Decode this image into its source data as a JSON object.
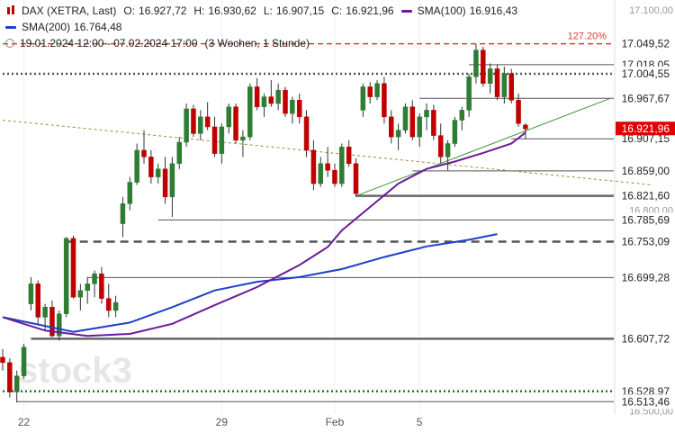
{
  "legend": {
    "instrument": "DAX (XETRA, Last)",
    "open_label": "O:",
    "open": "16.927,72",
    "high_label": "H:",
    "high": "16.930,62",
    "low_label": "L:",
    "low": "16.907,15",
    "close_label": "C:",
    "close": "16.921,96",
    "sma100_label": "SMA(100)",
    "sma100": "16.916,43",
    "sma200_label": "SMA(200)",
    "sma200": "16.764,48",
    "period": "19.01.2024 12:00 - 07.02.2024 17:00",
    "range": "(3 Wochen, 1 Stunde)",
    "icons": {
      "candle": "candlestick-icon",
      "sma": "line-swatch-icon",
      "period": "clock-icon"
    }
  },
  "colors": {
    "up": "#2e7d32",
    "down": "#c00000",
    "wick": "#333333",
    "sma100": "#6a1b9a",
    "sma200": "#1f3fc8",
    "trendline": "#3a9a3a",
    "dotted_trend": "#9a8a3a",
    "fib": "#e53935",
    "level": "#555555",
    "last_price_bg": "#e00000"
  },
  "chart_data": {
    "type": "candlestick",
    "title": "DAX (XETRA, Last)",
    "watermark": "stock3",
    "ylim": [
      16495,
      17115
    ],
    "x_ticks": [
      {
        "label": "22",
        "bar": 3
      },
      {
        "label": "29",
        "bar": 31
      },
      {
        "label": "Feb",
        "bar": 47
      },
      {
        "label": "5",
        "bar": 59
      }
    ],
    "y_axis_ticks": [
      "17.100,00",
      "17.018,05",
      "16.800,00",
      "16.500,00"
    ],
    "candles": [
      [
        16580,
        16592,
        16560,
        16572
      ],
      [
        16572,
        16578,
        16520,
        16528
      ],
      [
        16528,
        16560,
        16512,
        16552
      ],
      [
        16552,
        16600,
        16548,
        16595
      ],
      [
        16660,
        16700,
        16650,
        16690
      ],
      [
        16690,
        16695,
        16630,
        16640
      ],
      [
        16640,
        16660,
        16620,
        16655
      ],
      [
        16655,
        16665,
        16610,
        16612
      ],
      [
        16612,
        16650,
        16605,
        16645
      ],
      [
        16645,
        16760,
        16640,
        16758
      ],
      [
        16758,
        16762,
        16668,
        16670
      ],
      [
        16670,
        16690,
        16650,
        16680
      ],
      [
        16680,
        16700,
        16660,
        16690
      ],
      [
        16690,
        16710,
        16670,
        16705
      ],
      [
        16705,
        16715,
        16660,
        16668
      ],
      [
        16668,
        16690,
        16640,
        16650
      ],
      [
        16650,
        16672,
        16640,
        16662
      ],
      [
        16780,
        16820,
        16760,
        16810
      ],
      [
        16810,
        16850,
        16800,
        16842
      ],
      [
        16842,
        16900,
        16838,
        16890
      ],
      [
        16890,
        16920,
        16870,
        16880
      ],
      [
        16880,
        16890,
        16840,
        16850
      ],
      [
        16850,
        16870,
        16840,
        16862
      ],
      [
        16862,
        16880,
        16810,
        16820
      ],
      [
        16820,
        16880,
        16790,
        16870
      ],
      [
        16870,
        16910,
        16862,
        16902
      ],
      [
        16902,
        16960,
        16895,
        16952
      ],
      [
        16952,
        16958,
        16910,
        16915
      ],
      [
        16915,
        16950,
        16905,
        16940
      ],
      [
        16940,
        16962,
        16920,
        16925
      ],
      [
        16925,
        16940,
        16880,
        16885
      ],
      [
        16885,
        16930,
        16870,
        16925
      ],
      [
        16925,
        16960,
        16915,
        16955
      ],
      [
        16955,
        16960,
        16900,
        16905
      ],
      [
        16905,
        16920,
        16880,
        16910
      ],
      [
        16910,
        16990,
        16905,
        16985
      ],
      [
        16985,
        16998,
        16950,
        16955
      ],
      [
        16955,
        16975,
        16940,
        16970
      ],
      [
        16970,
        16995,
        16955,
        16960
      ],
      [
        16960,
        16990,
        16950,
        16980
      ],
      [
        16980,
        16985,
        16940,
        16945
      ],
      [
        16945,
        16970,
        16930,
        16965
      ],
      [
        16965,
        16975,
        16930,
        16940
      ],
      [
        16940,
        16950,
        16880,
        16890
      ],
      [
        16890,
        16905,
        16830,
        16840
      ],
      [
        16840,
        16880,
        16835,
        16870
      ],
      [
        16870,
        16895,
        16850,
        16860
      ],
      [
        16860,
        16870,
        16835,
        16840
      ],
      [
        16840,
        16900,
        16835,
        16895
      ],
      [
        16895,
        16905,
        16865,
        16870
      ],
      [
        16870,
        16878,
        16820,
        16825
      ],
      [
        16950,
        16990,
        16940,
        16985
      ],
      [
        16985,
        16992,
        16960,
        16970
      ],
      [
        16970,
        16995,
        16965,
        16990
      ],
      [
        16990,
        17000,
        16930,
        16940
      ],
      [
        16940,
        16950,
        16900,
        16910
      ],
      [
        16910,
        16930,
        16890,
        16920
      ],
      [
        16920,
        16960,
        16915,
        16955
      ],
      [
        16955,
        16965,
        16905,
        16910
      ],
      [
        16910,
        16945,
        16895,
        16940
      ],
      [
        16940,
        16960,
        16920,
        16950
      ],
      [
        16950,
        16958,
        16905,
        16912
      ],
      [
        16912,
        16930,
        16870,
        16880
      ],
      [
        16880,
        16905,
        16860,
        16900
      ],
      [
        16900,
        16940,
        16895,
        16935
      ],
      [
        16935,
        16955,
        16920,
        16950
      ],
      [
        16950,
        17005,
        16940,
        17000
      ],
      [
        17000,
        17049,
        16990,
        17040
      ],
      [
        17040,
        17045,
        16985,
        16990
      ],
      [
        16990,
        17020,
        16975,
        17012
      ],
      [
        17012,
        17018,
        16965,
        16970
      ],
      [
        16970,
        17015,
        16960,
        17005
      ],
      [
        17005,
        17012,
        16960,
        16965
      ],
      [
        16965,
        16975,
        16925,
        16930
      ],
      [
        16927.72,
        16930.62,
        16907.15,
        16921.96
      ]
    ],
    "sma100": [
      [
        0,
        16640
      ],
      [
        6,
        16620
      ],
      [
        12,
        16612
      ],
      [
        18,
        16615
      ],
      [
        24,
        16630
      ],
      [
        30,
        16658
      ],
      [
        36,
        16685
      ],
      [
        42,
        16718
      ],
      [
        46,
        16745
      ],
      [
        48,
        16770
      ],
      [
        52,
        16805
      ],
      [
        56,
        16840
      ],
      [
        60,
        16862
      ],
      [
        64,
        16873
      ],
      [
        68,
        16886
      ],
      [
        72,
        16900
      ],
      [
        74,
        16916.43
      ]
    ],
    "sma200": [
      [
        0,
        16640
      ],
      [
        10,
        16618
      ],
      [
        18,
        16632
      ],
      [
        24,
        16655
      ],
      [
        30,
        16680
      ],
      [
        36,
        16693
      ],
      [
        42,
        16700
      ],
      [
        48,
        16712
      ],
      [
        54,
        16730
      ],
      [
        60,
        16746
      ],
      [
        66,
        16756
      ],
      [
        70,
        16764.48
      ]
    ],
    "horizontal_levels": [
      {
        "value": 17049.52,
        "label": "17.049,52",
        "style": "fib-dashed",
        "start_bar": 0,
        "note": "127.20%"
      },
      {
        "value": 17018.05,
        "label": "17.018,05",
        "style": "thin",
        "start_bar": 66
      },
      {
        "value": 17004.55,
        "label": "17.004,55",
        "style": "dotted-thick",
        "start_bar": 0
      },
      {
        "value": 16967.67,
        "label": "16.967,67",
        "style": "thin",
        "start_bar": 59
      },
      {
        "value": 16907.15,
        "label": "16.907,15",
        "style": "thin",
        "start_bar": 72
      },
      {
        "value": 16859.0,
        "label": "16.859,00",
        "style": "thin",
        "start_bar": 58
      },
      {
        "value": 16821.6,
        "label": "16.821,60",
        "style": "thick",
        "start_bar": 50
      },
      {
        "value": 16785.69,
        "label": "16.785,69",
        "style": "thin",
        "start_bar": 22
      },
      {
        "value": 16753.09,
        "label": "16.753,09",
        "style": "dashed-thick",
        "start_bar": 9
      },
      {
        "value": 16699.28,
        "label": "16.699,28",
        "style": "thin",
        "start_bar": 12
      },
      {
        "value": 16607.72,
        "label": "16.607,72",
        "style": "thick",
        "start_bar": 4
      },
      {
        "value": 16528.97,
        "label": "16.528,97",
        "style": "green-dotted",
        "start_bar": 0
      },
      {
        "value": 16513.46,
        "label": "16.513,46",
        "style": "thin",
        "start_bar": 2
      }
    ],
    "trendlines": [
      {
        "from": [
          50,
          16821.6
        ],
        "to": [
          86,
          16967.67
        ],
        "style": "green"
      },
      {
        "from": [
          0,
          16935
        ],
        "to": [
          92,
          16838
        ],
        "style": "dotted"
      }
    ],
    "last_price": {
      "value": 16921.96,
      "label": "16.921,96"
    }
  }
}
